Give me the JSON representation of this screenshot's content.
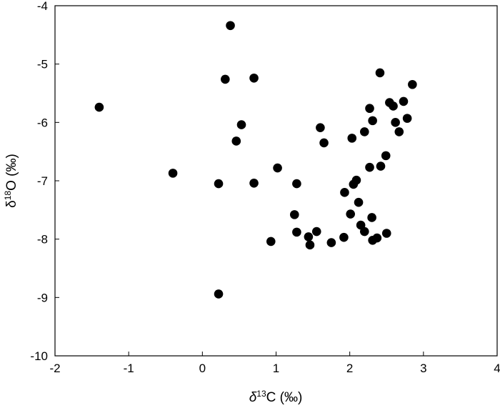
{
  "chart_data": {
    "type": "scatter",
    "xlim": [
      -2,
      4
    ],
    "ylim": [
      -10,
      -4
    ],
    "x_ticks": [
      "-2",
      "-1",
      "0",
      "1",
      "2",
      "3",
      "4"
    ],
    "y_ticks": [
      "-4",
      "-5",
      "-6",
      "-7",
      "-8",
      "-9",
      "-10"
    ],
    "xlabel": {
      "delta": "δ",
      "sup": "13",
      "rest": "C (‰)"
    },
    "ylabel": {
      "delta": "δ",
      "sup": "18",
      "rest": "O (‰)"
    },
    "grid": false,
    "legend": "none",
    "marker_color": "#000000",
    "series": [
      {
        "points": [
          [
            -1.4,
            -5.74
          ],
          [
            0.38,
            -4.34
          ],
          [
            0.31,
            -5.26
          ],
          [
            0.7,
            -5.24
          ],
          [
            0.53,
            -6.04
          ],
          [
            0.46,
            -6.32
          ],
          [
            -0.4,
            -6.87
          ],
          [
            0.22,
            -7.05
          ],
          [
            0.7,
            -7.04
          ],
          [
            1.02,
            -6.78
          ],
          [
            1.28,
            -7.05
          ],
          [
            0.22,
            -8.94
          ],
          [
            0.93,
            -8.04
          ],
          [
            1.25,
            -7.58
          ],
          [
            1.28,
            -7.88
          ],
          [
            1.44,
            -7.96
          ],
          [
            1.46,
            -8.1
          ],
          [
            1.55,
            -7.87
          ],
          [
            1.75,
            -8.06
          ],
          [
            1.6,
            -6.09
          ],
          [
            1.65,
            -6.35
          ],
          [
            1.92,
            -7.97
          ],
          [
            1.93,
            -7.2
          ],
          [
            2.01,
            -7.57
          ],
          [
            2.03,
            -6.27
          ],
          [
            2.05,
            -7.06
          ],
          [
            2.09,
            -6.99
          ],
          [
            2.12,
            -7.37
          ],
          [
            2.15,
            -7.76
          ],
          [
            2.2,
            -7.87
          ],
          [
            2.2,
            -6.16
          ],
          [
            2.27,
            -5.76
          ],
          [
            2.27,
            -6.77
          ],
          [
            2.31,
            -5.97
          ],
          [
            2.3,
            -7.63
          ],
          [
            2.31,
            -8.02
          ],
          [
            2.37,
            -7.98
          ],
          [
            2.41,
            -5.15
          ],
          [
            2.42,
            -6.75
          ],
          [
            2.49,
            -6.57
          ],
          [
            2.5,
            -7.9
          ],
          [
            2.54,
            -5.66
          ],
          [
            2.59,
            -5.72
          ],
          [
            2.62,
            -6.0
          ],
          [
            2.67,
            -6.16
          ],
          [
            2.73,
            -5.64
          ],
          [
            2.78,
            -5.93
          ],
          [
            2.85,
            -5.35
          ]
        ]
      }
    ]
  }
}
